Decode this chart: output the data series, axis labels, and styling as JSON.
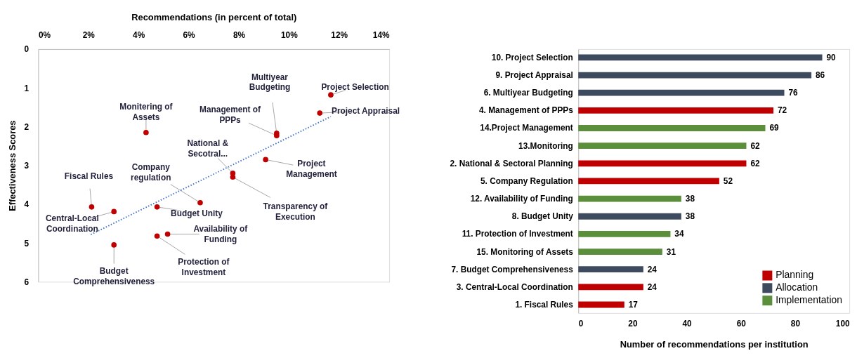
{
  "chart_data": [
    {
      "type": "scatter",
      "xlabel": "Recommendations  (in percent of total)",
      "ylabel": "Effectiveness Scores",
      "xlim": [
        0,
        14
      ],
      "xticks": [
        {
          "value": 0,
          "label": "0%"
        },
        {
          "value": 2,
          "label": "2%"
        },
        {
          "value": 4,
          "label": "4%"
        },
        {
          "value": 6,
          "label": "6%"
        },
        {
          "value": 8,
          "label": "8%"
        },
        {
          "value": 10,
          "label": "10%"
        },
        {
          "value": 12,
          "label": "12%"
        },
        {
          "value": 14,
          "label": "14%"
        }
      ],
      "ylim": [
        6,
        0
      ],
      "yticks": [
        0,
        1,
        2,
        3,
        4,
        5,
        6
      ],
      "grid": false,
      "marker": "circle",
      "series": [
        {
          "type": "scatter",
          "color": "#c00000",
          "x": [
            2.13,
            3.02,
            3.02,
            4.3,
            4.74,
            4.74,
            5.16,
            6.46,
            7.76,
            7.76,
            9.07,
            9.51,
            9.51,
            11.23,
            11.67
          ],
          "values": [
            4.07,
            4.19,
            5.05,
            2.15,
            4.07,
            4.82,
            4.77,
            3.96,
            3.2,
            3.3,
            2.85,
            2.17,
            2.23,
            1.65,
            1.18
          ]
        },
        {
          "type": "line",
          "color": "#4472c4",
          "line_style": "dotted",
          "marker": "none",
          "x": [
            2.1,
            11.67
          ],
          "values": [
            4.78,
            1.74
          ]
        }
      ],
      "annotations": [
        {
          "text": "Fiscal Rules",
          "x": 2.13,
          "y": 4.07
        },
        {
          "text": "Central-Local\nCoordination",
          "x": 3.02,
          "y": 4.19
        },
        {
          "text": "Budget\nComprehensiveness",
          "x": 3.02,
          "y": 5.05
        },
        {
          "text": "Monitering of\nAssets",
          "x": 4.3,
          "y": 2.15
        },
        {
          "text": "Budget Unity",
          "x": 4.74,
          "y": 4.07
        },
        {
          "text": "Protection of\nInvestment",
          "x": 4.74,
          "y": 4.82
        },
        {
          "text": "Availability  of\nFunding",
          "x": 5.16,
          "y": 4.77
        },
        {
          "text": "Company\nregulation",
          "x": 6.46,
          "y": 3.96
        },
        {
          "text": "National  &\nSecotral...",
          "x": 7.76,
          "y": 3.2
        },
        {
          "text": "Transparency  of\nExecution",
          "x": 7.76,
          "y": 3.3
        },
        {
          "text": "Project\nManagement",
          "x": 9.07,
          "y": 2.85
        },
        {
          "text": "Multiyear\nBudgeting",
          "x": 9.51,
          "y": 2.17
        },
        {
          "text": "Management of\nPPPs",
          "x": 9.51,
          "y": 2.23
        },
        {
          "text": "Project Appraisal",
          "x": 11.23,
          "y": 1.65
        },
        {
          "text": "Project Selection",
          "x": 11.67,
          "y": 1.18
        }
      ]
    },
    {
      "type": "bar",
      "orientation": "horizontal",
      "xlabel": "Number of recommendations per institution",
      "categories": [
        "10. Project Selection",
        "9. Project Appraisal",
        "6. Multiyear Budgeting",
        "4. Management of PPPs",
        "14.Project Management",
        "13.Monitoring",
        "2. National & Sectoral Planning",
        "5. Company Regulation",
        "12. Availability of Funding",
        "8. Budget Unity",
        "11. Protection of Investment",
        "15. Monitoring of Assets",
        "7. Budget Comprehensiveness",
        "3. Central-Local Coordination",
        "1. Fiscal Rules"
      ],
      "xlim": [
        0,
        100
      ],
      "xticks": [
        0,
        20,
        40,
        60,
        80,
        100
      ],
      "grid": false,
      "legend": "bottom right",
      "data_labels": true,
      "series": [
        {
          "name": "Planning",
          "color": "#c00000",
          "values": [
            null,
            null,
            null,
            72,
            null,
            null,
            62,
            52,
            null,
            null,
            null,
            null,
            null,
            24,
            17
          ]
        },
        {
          "name": "Allocation",
          "color": "#3e4a5e",
          "values": [
            90,
            86,
            76,
            null,
            null,
            null,
            null,
            null,
            null,
            38,
            null,
            null,
            24,
            null,
            null
          ]
        },
        {
          "name": "Implementation",
          "color": "#5b8f3c",
          "values": [
            null,
            null,
            null,
            null,
            69,
            62,
            null,
            null,
            38,
            null,
            34,
            31,
            null,
            null,
            null
          ]
        }
      ]
    }
  ]
}
